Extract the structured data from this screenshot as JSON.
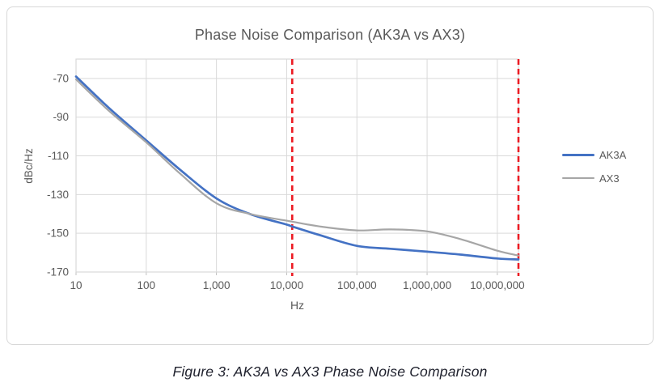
{
  "chart": {
    "title": "Phase Noise Comparison (AK3A vs AX3)"
  },
  "figure": {
    "caption": "Figure 3: AK3A vs AX3 Phase Noise Comparison"
  },
  "chart_data": {
    "type": "line",
    "title": "Phase Noise Comparison (AK3A vs AX3)",
    "xlabel": "Hz",
    "ylabel": "dBc/Hz",
    "x_scale": "log",
    "xlim": [
      10,
      20000000
    ],
    "ylim": [
      -170,
      -60
    ],
    "grid": true,
    "legend_position": "right",
    "x_ticks": [
      10,
      100,
      1000,
      10000,
      100000,
      1000000,
      10000000
    ],
    "x_tick_labels": [
      "10",
      "100",
      "1,000",
      "10,000",
      "100,000",
      "1,000,000",
      "10,000,000"
    ],
    "y_ticks": [
      -70,
      -90,
      -110,
      -130,
      -150,
      -170
    ],
    "y_tick_labels": [
      "-70",
      "-90",
      "-110",
      "-130",
      "-150",
      "-170"
    ],
    "x": [
      10,
      30,
      100,
      300,
      1000,
      3000,
      10000,
      12000,
      30000,
      100000,
      300000,
      1000000,
      3000000,
      10000000,
      20000000
    ],
    "series": [
      {
        "name": "AK3A",
        "color": "#4472c4",
        "values": [
          -69,
          -85.5,
          -102,
          -117,
          -132,
          -140,
          -145.5,
          -146.5,
          -151,
          -156.5,
          -158,
          -159.5,
          -161,
          -163,
          -163.5
        ]
      },
      {
        "name": "AX3",
        "color": "#a6a6a6",
        "values": [
          -70.5,
          -87,
          -103,
          -119,
          -134.5,
          -140,
          -143.5,
          -144,
          -146.5,
          -148.5,
          -148,
          -149,
          -153,
          -159,
          -161.5
        ]
      }
    ],
    "annotations": {
      "vertical_dashed_lines_hz": [
        12000,
        20000000
      ],
      "line_color": "#ec1c24",
      "line_style": "dashed"
    },
    "grid_color": "#d9d9d9",
    "axis_text_color": "#595959"
  }
}
